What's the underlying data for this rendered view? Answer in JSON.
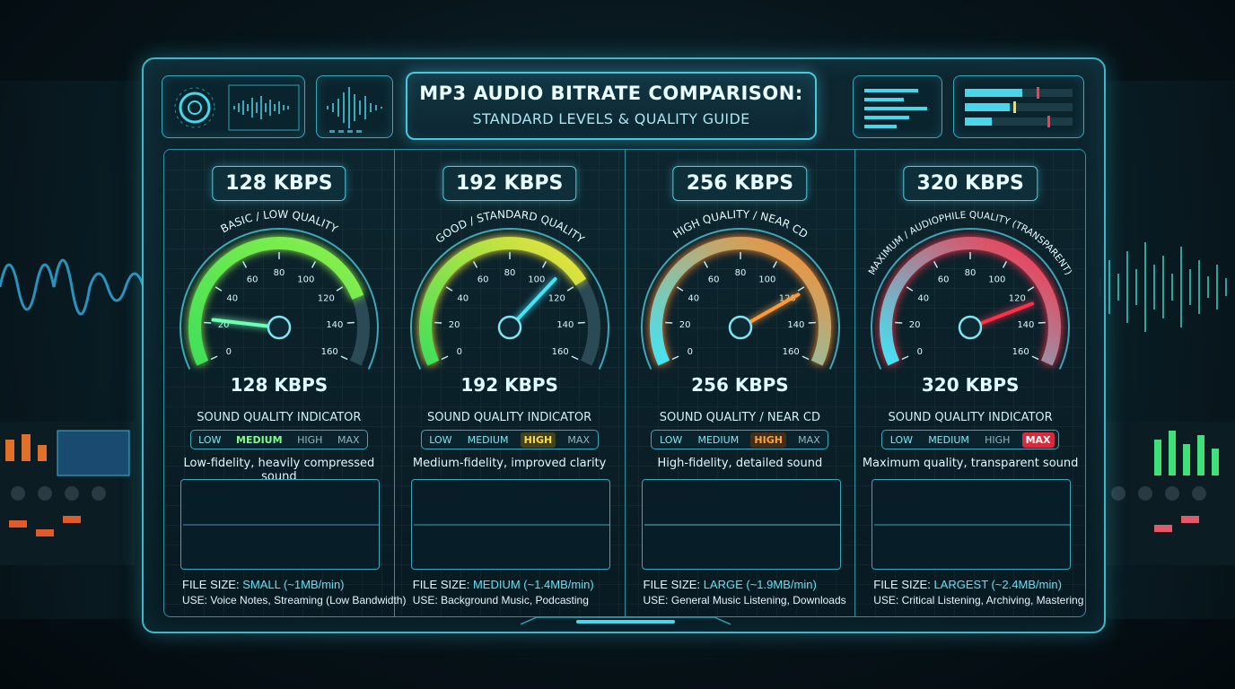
{
  "header": {
    "title": "MP3 AUDIO BITRATE COMPARISON:",
    "subtitle": "STANDARD LEVELS & QUALITY GUIDE"
  },
  "colors": {
    "accent": "#47c8dc",
    "green": "#3fe05a",
    "yellow": "#f0e33a",
    "orange": "#ff8a2a",
    "red": "#ff3048",
    "cyan": "#44e4f5",
    "magenta": "#e040f0"
  },
  "columns": [
    {
      "kbps_pill": "128 KBPS",
      "arc_label": "BASIC / LOW QUALITY",
      "gauge_value": "128 KBPS",
      "needle_value": 22,
      "fill_value": 128,
      "ticks": [
        "0",
        "20",
        "40",
        "60",
        "80",
        "100",
        "120",
        "140",
        "160"
      ],
      "sq_label": "SOUND QUALITY INDICATOR",
      "levels": [
        "LOW",
        "MEDIUM",
        "HIGH",
        "MAX"
      ],
      "active_level": "MEDIUM",
      "description": "Low-fidelity, heavily compressed sound",
      "file_prefix": "FILE SIZE:",
      "file_value": "SMALL (~1MB/min)",
      "use_prefix": "USE:",
      "use_value": "Voice Notes, Streaming (Low Bandwidth)"
    },
    {
      "kbps_pill": "192 KBPS",
      "arc_label": "GOOD / STANDARD QUALITY",
      "gauge_value": "192 KBPS",
      "needle_value": 110,
      "fill_value": 120,
      "ticks": [
        "0",
        "20",
        "40",
        "60",
        "80",
        "100",
        "120",
        "140",
        "160"
      ],
      "sq_label": "SOUND QUALITY INDICATOR",
      "levels": [
        "LOW",
        "MEDIUM",
        "HIGH",
        "MAX"
      ],
      "active_level": "HIGH",
      "description": "Medium-fidelity, improved clarity",
      "file_prefix": "FILE SIZE:",
      "file_value": "MEDIUM (~1.4MB/min)",
      "use_prefix": "USE:",
      "use_value": "Background Music, Podcasting"
    },
    {
      "kbps_pill": "256 KBPS",
      "arc_label": "HIGH QUALITY / NEAR CD",
      "gauge_value": "256 KBPS",
      "needle_value": 122,
      "fill_value": 160,
      "ticks": [
        "0",
        "20",
        "40",
        "60",
        "80",
        "100",
        "120",
        "140",
        "160"
      ],
      "sq_label": "SOUND QUALITY / NEAR CD",
      "levels": [
        "LOW",
        "MEDIUM",
        "HIGH",
        "MAX"
      ],
      "active_level": "HIGH",
      "description": "High-fidelity, detailed sound",
      "file_prefix": "FILE SIZE:",
      "file_value": "LARGE (~1.9MB/min)",
      "use_prefix": "USE:",
      "use_value": "General Music Listening, Downloads"
    },
    {
      "kbps_pill": "320 KBPS",
      "arc_label": "MAXIMUM / AUDIOPHILE QUALITY (TRANSPARENT)",
      "gauge_value": "320 KBPS",
      "needle_value": 128,
      "fill_value": 160,
      "ticks": [
        "0",
        "20",
        "40",
        "60",
        "80",
        "100",
        "120",
        "140",
        "160"
      ],
      "sq_label": "SOUND QUALITY INDICATOR",
      "levels": [
        "LOW",
        "MEDIUM",
        "HIGH",
        "MAX"
      ],
      "active_level": "MAX",
      "description": "Maximum quality, transparent sound",
      "file_prefix": "FILE SIZE:",
      "file_value": "LARGEST (~2.4MB/min)",
      "use_prefix": "USE:",
      "use_value": "Critical Listening, Archiving, Mastering"
    }
  ]
}
